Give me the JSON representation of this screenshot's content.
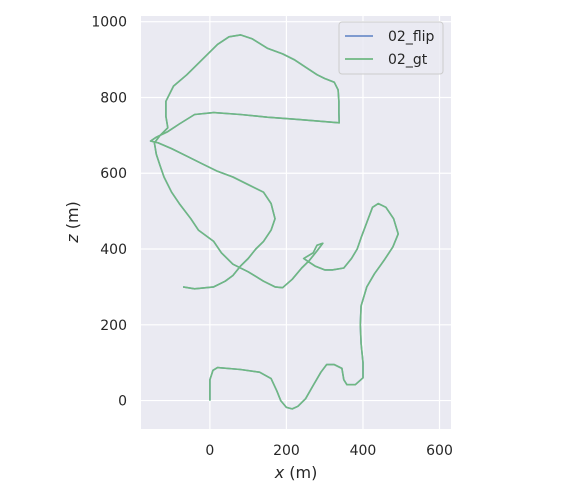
{
  "chart_data": {
    "type": "line",
    "xlabel_var": "x",
    "xlabel_unit": " (m)",
    "ylabel_var": "z",
    "ylabel_unit": " (m)",
    "xlim": [
      -180,
      630
    ],
    "ylim": [
      -75,
      1015
    ],
    "xticks": [
      0,
      200,
      400,
      600
    ],
    "yticks": [
      0,
      200,
      400,
      600,
      800,
      1000
    ],
    "grid": true,
    "equal_aspect": true,
    "legend_position": "top-right",
    "series": [
      {
        "name": "02_flip",
        "color": "#6f8fca",
        "points": [
          [
            0,
            0
          ],
          [
            0,
            55
          ],
          [
            8,
            80
          ],
          [
            20,
            87
          ],
          [
            80,
            82
          ],
          [
            130,
            75
          ],
          [
            160,
            58
          ],
          [
            175,
            25
          ],
          [
            185,
            0
          ],
          [
            200,
            -18
          ],
          [
            215,
            -22
          ],
          [
            230,
            -15
          ],
          [
            250,
            5
          ],
          [
            270,
            40
          ],
          [
            290,
            75
          ],
          [
            305,
            95
          ],
          [
            325,
            95
          ],
          [
            345,
            85
          ],
          [
            350,
            55
          ],
          [
            358,
            42
          ],
          [
            380,
            42
          ],
          [
            400,
            60
          ],
          [
            400,
            100
          ],
          [
            395,
            150
          ],
          [
            393,
            200
          ],
          [
            395,
            250
          ],
          [
            410,
            300
          ],
          [
            430,
            335
          ],
          [
            455,
            370
          ],
          [
            478,
            405
          ],
          [
            492,
            440
          ],
          [
            480,
            480
          ],
          [
            460,
            510
          ],
          [
            440,
            520
          ],
          [
            425,
            510
          ],
          [
            410,
            470
          ],
          [
            395,
            430
          ],
          [
            385,
            400
          ],
          [
            370,
            375
          ],
          [
            350,
            350
          ],
          [
            320,
            345
          ],
          [
            300,
            345
          ],
          [
            275,
            355
          ],
          [
            260,
            365
          ],
          [
            245,
            375
          ],
          [
            270,
            390
          ],
          [
            280,
            410
          ],
          [
            295,
            415
          ],
          [
            280,
            395
          ],
          [
            260,
            370
          ],
          [
            240,
            350
          ],
          [
            215,
            320
          ],
          [
            190,
            298
          ],
          [
            170,
            300
          ],
          [
            140,
            315
          ],
          [
            100,
            340
          ],
          [
            60,
            360
          ],
          [
            30,
            390
          ],
          [
            10,
            420
          ],
          [
            -30,
            450
          ],
          [
            -50,
            480
          ],
          [
            -80,
            520
          ],
          [
            -100,
            550
          ],
          [
            -120,
            590
          ],
          [
            -130,
            620
          ],
          [
            -140,
            650
          ],
          [
            -145,
            680
          ],
          [
            -130,
            700
          ],
          [
            -110,
            720
          ],
          [
            -115,
            750
          ],
          [
            -115,
            790
          ],
          [
            -95,
            830
          ],
          [
            -60,
            860
          ],
          [
            -20,
            900
          ],
          [
            20,
            940
          ],
          [
            50,
            960
          ],
          [
            80,
            965
          ],
          [
            110,
            955
          ],
          [
            150,
            930
          ],
          [
            190,
            915
          ],
          [
            220,
            900
          ],
          [
            250,
            880
          ],
          [
            280,
            860
          ],
          [
            300,
            850
          ],
          [
            325,
            840
          ],
          [
            335,
            820
          ],
          [
            337,
            790
          ],
          [
            337,
            760
          ],
          [
            338,
            733
          ],
          [
            290,
            737
          ],
          [
            230,
            742
          ],
          [
            150,
            748
          ],
          [
            80,
            755
          ],
          [
            10,
            760
          ],
          [
            -40,
            755
          ],
          [
            -80,
            730
          ],
          [
            -110,
            710
          ],
          [
            -140,
            695
          ],
          [
            -155,
            685
          ],
          [
            -135,
            680
          ],
          [
            -100,
            665
          ],
          [
            -60,
            645
          ],
          [
            -20,
            625
          ],
          [
            20,
            605
          ],
          [
            60,
            590
          ],
          [
            100,
            570
          ],
          [
            140,
            550
          ],
          [
            160,
            520
          ],
          [
            170,
            480
          ],
          [
            160,
            450
          ],
          [
            140,
            420
          ],
          [
            120,
            400
          ],
          [
            100,
            375
          ],
          [
            80,
            355
          ],
          [
            60,
            330
          ],
          [
            40,
            315
          ],
          [
            10,
            300
          ],
          [
            -40,
            295
          ],
          [
            -70,
            300
          ]
        ]
      },
      {
        "name": "02_gt",
        "color": "#6fb882",
        "points": [
          [
            0,
            0
          ],
          [
            0,
            55
          ],
          [
            8,
            80
          ],
          [
            20,
            87
          ],
          [
            80,
            82
          ],
          [
            130,
            75
          ],
          [
            160,
            58
          ],
          [
            175,
            25
          ],
          [
            185,
            0
          ],
          [
            200,
            -18
          ],
          [
            215,
            -22
          ],
          [
            230,
            -15
          ],
          [
            250,
            5
          ],
          [
            270,
            40
          ],
          [
            290,
            75
          ],
          [
            305,
            95
          ],
          [
            325,
            95
          ],
          [
            345,
            85
          ],
          [
            350,
            55
          ],
          [
            358,
            42
          ],
          [
            380,
            42
          ],
          [
            400,
            60
          ],
          [
            400,
            100
          ],
          [
            395,
            150
          ],
          [
            393,
            200
          ],
          [
            395,
            250
          ],
          [
            410,
            300
          ],
          [
            430,
            335
          ],
          [
            455,
            370
          ],
          [
            478,
            405
          ],
          [
            492,
            440
          ],
          [
            480,
            480
          ],
          [
            460,
            510
          ],
          [
            440,
            520
          ],
          [
            425,
            510
          ],
          [
            410,
            470
          ],
          [
            395,
            430
          ],
          [
            385,
            400
          ],
          [
            370,
            375
          ],
          [
            350,
            350
          ],
          [
            320,
            345
          ],
          [
            300,
            345
          ],
          [
            275,
            355
          ],
          [
            260,
            365
          ],
          [
            245,
            375
          ],
          [
            270,
            390
          ],
          [
            280,
            410
          ],
          [
            295,
            415
          ],
          [
            280,
            395
          ],
          [
            260,
            370
          ],
          [
            240,
            350
          ],
          [
            215,
            320
          ],
          [
            190,
            298
          ],
          [
            170,
            300
          ],
          [
            140,
            315
          ],
          [
            100,
            340
          ],
          [
            60,
            360
          ],
          [
            30,
            390
          ],
          [
            10,
            420
          ],
          [
            -30,
            450
          ],
          [
            -50,
            480
          ],
          [
            -80,
            520
          ],
          [
            -100,
            550
          ],
          [
            -120,
            590
          ],
          [
            -130,
            620
          ],
          [
            -140,
            650
          ],
          [
            -145,
            680
          ],
          [
            -130,
            700
          ],
          [
            -110,
            720
          ],
          [
            -115,
            750
          ],
          [
            -115,
            790
          ],
          [
            -95,
            830
          ],
          [
            -60,
            860
          ],
          [
            -20,
            900
          ],
          [
            20,
            940
          ],
          [
            50,
            960
          ],
          [
            80,
            965
          ],
          [
            110,
            955
          ],
          [
            150,
            930
          ],
          [
            190,
            915
          ],
          [
            220,
            900
          ],
          [
            250,
            880
          ],
          [
            280,
            860
          ],
          [
            300,
            850
          ],
          [
            325,
            840
          ],
          [
            335,
            820
          ],
          [
            337,
            790
          ],
          [
            337,
            760
          ],
          [
            338,
            733
          ],
          [
            290,
            737
          ],
          [
            230,
            742
          ],
          [
            150,
            748
          ],
          [
            80,
            755
          ],
          [
            10,
            760
          ],
          [
            -40,
            755
          ],
          [
            -80,
            730
          ],
          [
            -110,
            710
          ],
          [
            -140,
            695
          ],
          [
            -155,
            685
          ],
          [
            -135,
            680
          ],
          [
            -100,
            665
          ],
          [
            -60,
            645
          ],
          [
            -20,
            625
          ],
          [
            20,
            605
          ],
          [
            60,
            590
          ],
          [
            100,
            570
          ],
          [
            140,
            550
          ],
          [
            160,
            520
          ],
          [
            170,
            480
          ],
          [
            160,
            450
          ],
          [
            140,
            420
          ],
          [
            120,
            400
          ],
          [
            100,
            375
          ],
          [
            80,
            355
          ],
          [
            60,
            330
          ],
          [
            40,
            315
          ],
          [
            10,
            300
          ],
          [
            -40,
            295
          ],
          [
            -70,
            300
          ]
        ]
      }
    ]
  }
}
